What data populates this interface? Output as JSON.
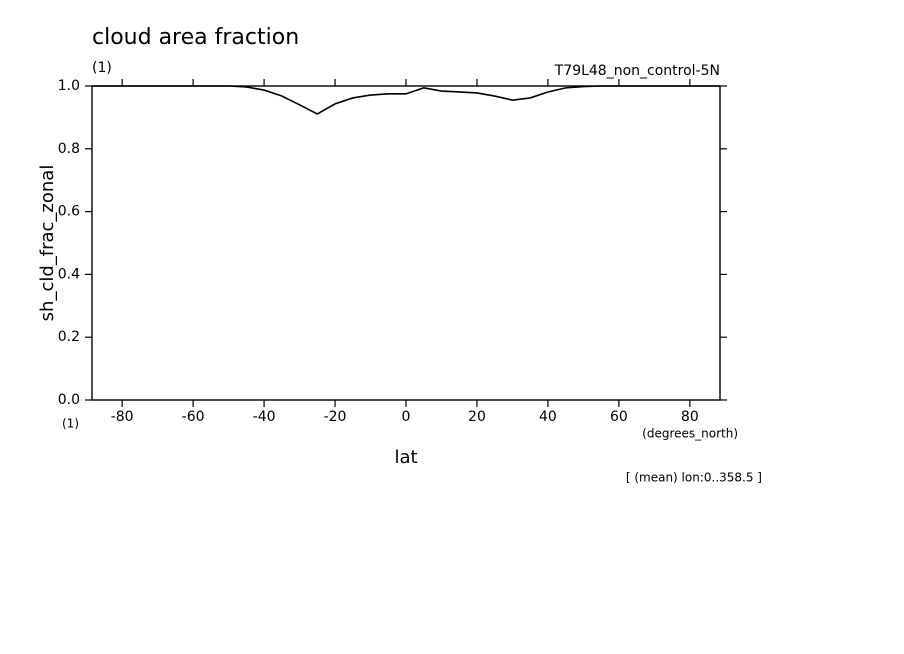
{
  "chart_data": {
    "type": "line",
    "title": "cloud area fraction",
    "title_units": "(1)",
    "dataset": "T79L48_non_control-5N",
    "ylabel": "sh_cld_frac_zonal",
    "y_units": "(1)",
    "xlabel": "lat",
    "x_units": "(degrees_north)",
    "footnote": "[ (mean) lon:0..358.5 ]",
    "x": [
      -88.5,
      -50,
      -45,
      -40,
      -35,
      -30,
      -25,
      -20,
      -15,
      -10,
      -5,
      0,
      5,
      10,
      15,
      20,
      25,
      30,
      35,
      40,
      45,
      50,
      55,
      88.5
    ],
    "series": [
      {
        "name": "sh_cld_frac_zonal",
        "color": "#000000",
        "values": [
          1.0,
          1.0,
          0.997,
          0.987,
          0.968,
          0.94,
          0.911,
          0.943,
          0.962,
          0.971,
          0.975,
          0.975,
          0.994,
          0.984,
          0.981,
          0.978,
          0.968,
          0.955,
          0.962,
          0.981,
          0.994,
          0.998,
          1.0,
          1.0
        ]
      }
    ],
    "xlim": [
      -88.5,
      88.5
    ],
    "ylim": [
      0,
      1
    ],
    "xticks": [
      -80,
      -60,
      -40,
      -20,
      0,
      20,
      40,
      60,
      80
    ],
    "yticks": [
      {
        "value": 0,
        "label": "0.0"
      },
      0.2,
      0.4,
      0.6,
      0.8,
      {
        "value": 1,
        "label": "1.0"
      }
    ]
  }
}
